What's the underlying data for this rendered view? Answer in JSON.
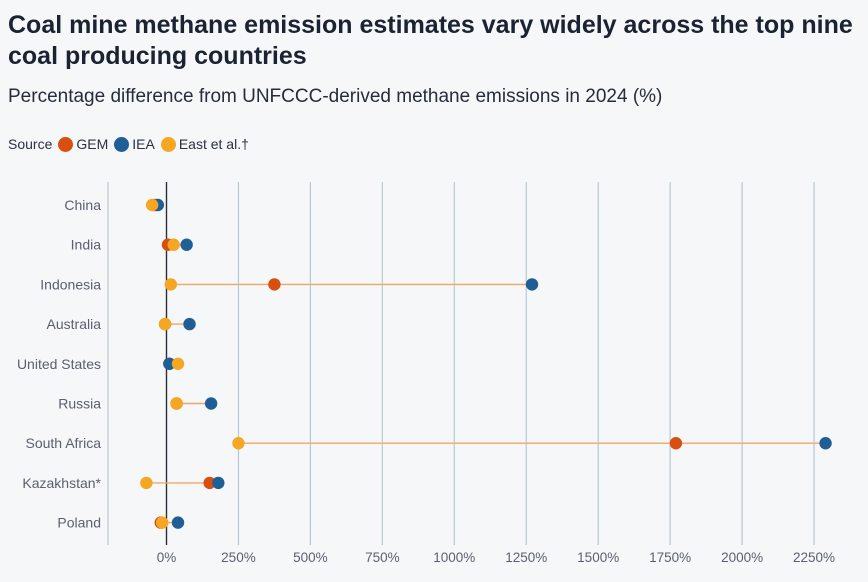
{
  "title": "Coal mine methane emission estimates vary widely across the top nine coal producing countries",
  "subtitle": "Percentage difference from UNFCCC-derived methane emissions in 2024 (%)",
  "legend": {
    "label": "Source",
    "items": [
      {
        "name": "GEM",
        "color": "#d94f10"
      },
      {
        "name": "IEA",
        "color": "#1f5f96"
      },
      {
        "name": "East et al.†",
        "color": "#f5a623"
      }
    ]
  },
  "chart_data": {
    "type": "dot-range",
    "categories": [
      "China",
      "India",
      "Indonesia",
      "Australia",
      "United States",
      "Russia",
      "South Africa",
      "Kazakhstan*",
      "Poland"
    ],
    "series": [
      {
        "name": "GEM",
        "color": "#d94f10",
        "values": [
          -40,
          5,
          375,
          -5,
          10,
          35,
          1770,
          150,
          -20
        ]
      },
      {
        "name": "IEA",
        "color": "#1f5f96",
        "values": [
          -30,
          70,
          1270,
          80,
          10,
          155,
          2290,
          180,
          40
        ]
      },
      {
        "name": "East et al.†",
        "color": "#f5a623",
        "values": [
          -50,
          25,
          15,
          -5,
          40,
          35,
          250,
          -70,
          -15
        ]
      }
    ],
    "xlim": [
      -200,
      2330
    ],
    "xticks": [
      0,
      250,
      500,
      750,
      1000,
      1250,
      1500,
      1750,
      2000,
      2250
    ],
    "xtick_labels": [
      "0%",
      "250%",
      "500%",
      "750%",
      "1000%",
      "1250%",
      "1500%",
      "1750%",
      "2000%",
      "2250%"
    ],
    "grid": true,
    "range_line_color": "#f0a766",
    "grid_color": "#b9c9cf",
    "zero_line_color": "#2a2f3a"
  }
}
